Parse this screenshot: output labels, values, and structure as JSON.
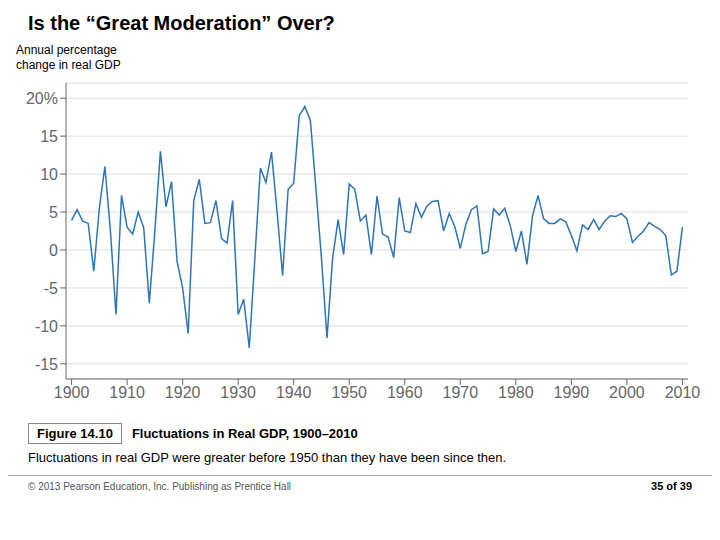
{
  "chart_data": {
    "type": "line",
    "title": "Is the “Great Moderation” Over?",
    "ylabel": [
      "Annual percentage",
      "change in real GDP"
    ],
    "annotations": [
      "Figure 14.10",
      "Fluctuations in Real GDP, 1900–2010",
      "Fluctuations in real GDP were greater before 1950 than they have been since then.",
      "© 2013 Pearson Education, Inc. Publishing as Prentice Hall",
      "35 of 39"
    ],
    "x": [
      1900,
      1901,
      1902,
      1903,
      1904,
      1905,
      1906,
      1907,
      1908,
      1909,
      1910,
      1911,
      1912,
      1913,
      1914,
      1915,
      1916,
      1917,
      1918,
      1919,
      1920,
      1921,
      1922,
      1923,
      1924,
      1925,
      1926,
      1927,
      1928,
      1929,
      1930,
      1931,
      1932,
      1933,
      1934,
      1935,
      1936,
      1937,
      1938,
      1939,
      1940,
      1941,
      1942,
      1943,
      1944,
      1945,
      1946,
      1947,
      1948,
      1949,
      1950,
      1951,
      1952,
      1953,
      1954,
      1955,
      1956,
      1957,
      1958,
      1959,
      1960,
      1961,
      1962,
      1963,
      1964,
      1965,
      1966,
      1967,
      1968,
      1969,
      1970,
      1971,
      1972,
      1973,
      1974,
      1975,
      1976,
      1977,
      1978,
      1979,
      1980,
      1981,
      1982,
      1983,
      1984,
      1985,
      1986,
      1987,
      1988,
      1989,
      1990,
      1991,
      1992,
      1993,
      1994,
      1995,
      1996,
      1997,
      1998,
      1999,
      2000,
      2001,
      2002,
      2003,
      2004,
      2005,
      2006,
      2007,
      2008,
      2009,
      2010
    ],
    "values": [
      3.9,
      5.3,
      3.8,
      3.5,
      -2.8,
      5.5,
      11.0,
      2.5,
      -8.5,
      7.2,
      3.0,
      2.1,
      5.0,
      2.9,
      -7.0,
      2.5,
      13.0,
      5.7,
      9.0,
      -1.5,
      -5.0,
      -11.0,
      6.5,
      9.3,
      3.5,
      3.6,
      6.5,
      1.5,
      0.9,
      6.5,
      -8.5,
      -6.5,
      -12.9,
      -1.2,
      10.8,
      8.9,
      12.9,
      5.1,
      -3.4,
      8.0,
      8.8,
      17.7,
      18.9,
      17.1,
      8.1,
      -1.1,
      -11.6,
      -1.1,
      4.0,
      -0.6,
      8.7,
      8.0,
      3.8,
      4.6,
      -0.6,
      7.1,
      2.1,
      1.7,
      -1.0,
      6.9,
      2.5,
      2.3,
      6.1,
      4.3,
      5.8,
      6.4,
      6.5,
      2.5,
      4.8,
      3.1,
      0.2,
      3.4,
      5.3,
      5.8,
      -0.5,
      -0.2,
      5.4,
      4.6,
      5.5,
      3.2,
      -0.2,
      2.5,
      -1.9,
      4.5,
      7.2,
      4.1,
      3.5,
      3.5,
      4.1,
      3.7,
      1.9,
      -0.1,
      3.3,
      2.7,
      4.0,
      2.7,
      3.8,
      4.5,
      4.4,
      4.8,
      4.1,
      1.0,
      1.8,
      2.5,
      3.6,
      3.1,
      2.7,
      1.9,
      -3.3,
      -2.8,
      3.0
    ],
    "color": "#2e75b6",
    "xlim": [
      1899,
      2011
    ],
    "xticks": [
      1900,
      1910,
      1920,
      1930,
      1940,
      1950,
      1960,
      1970,
      1980,
      1990,
      2000,
      2010
    ],
    "ylim": [
      -17,
      22
    ],
    "yticks": [
      -15,
      -10,
      -5,
      0,
      5,
      10,
      15,
      {
        "value": 20,
        "label": "20%"
      }
    ],
    "grid": true
  }
}
